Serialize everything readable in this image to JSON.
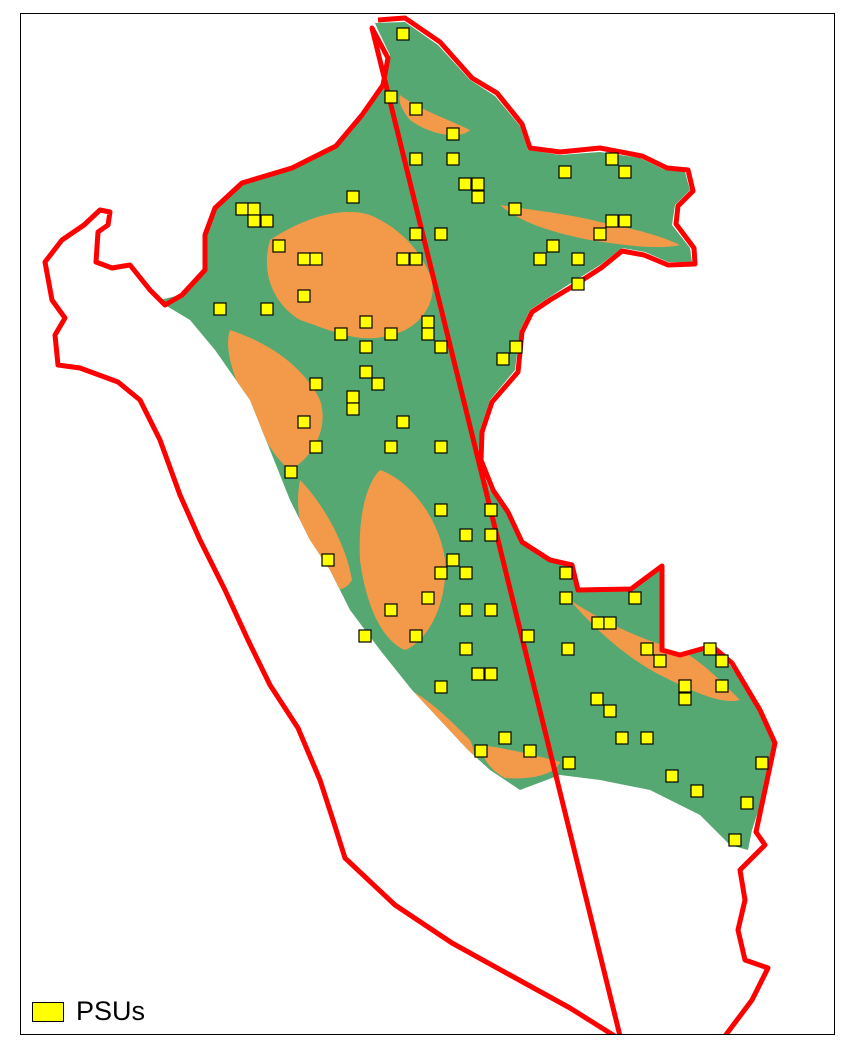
{
  "map": {
    "colors": {
      "land": "#55a872",
      "land_patch": "#f29a4a",
      "border": "#ff0000",
      "marker_fill": "#ffff00",
      "marker_stroke": "#000000",
      "frame": "#000000"
    }
  },
  "legend": {
    "label": "PSUs",
    "icon": "yellow-square-swatch"
  }
}
